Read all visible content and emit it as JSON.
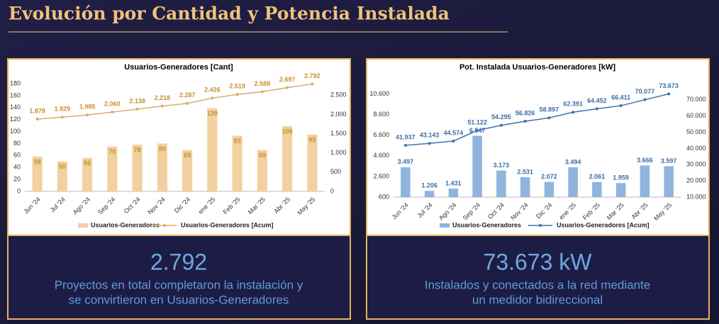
{
  "header": {
    "title": "Evolución por Cantidad y Potencia Instalada"
  },
  "cards": [
    {
      "value": "2.792",
      "lines": [
        "Proyectos en total completaron la instalación y",
        "se convirtieron en Usuarios-Generadores"
      ]
    },
    {
      "value": "73.673 kW",
      "lines": [
        "Instalados y conectados a la red mediante",
        "un medidor bidireccional"
      ]
    }
  ],
  "chart_data": [
    {
      "type": "bar",
      "title": "Usuarios-Generadores  [Cant]",
      "categories": [
        "Jun '24",
        "Jul '24",
        "Ago '24",
        "Sep '24",
        "Oct '24",
        "Nov '24",
        "Dic '24",
        "ene '25",
        "Feb '25",
        "Mar '25",
        "Abr '25",
        "May '25"
      ],
      "series": [
        {
          "name": "Usuarios-Generadores",
          "type": "bar",
          "color": "#f2d09f",
          "label_color": "#c8902e",
          "values": [
            58,
            50,
            56,
            75,
            78,
            80,
            69,
            139,
            93,
            69,
            109,
            95
          ]
        },
        {
          "name": "Usuarios-Generadores [Acum]",
          "type": "line",
          "axis": "y2",
          "color": "#d6ad68",
          "label_color": "#c8902e",
          "values": [
            1879,
            1929,
            1985,
            2060,
            2138,
            2218,
            2287,
            2426,
            2519,
            2588,
            2697,
            2792
          ],
          "value_labels": [
            "1.879",
            "1.929",
            "1.985",
            "2.060",
            "2.138",
            "2.218",
            "2.287",
            "2.426",
            "2.519",
            "2.588",
            "2.697",
            "2.792"
          ]
        }
      ],
      "ylim": [
        0,
        180
      ],
      "yticks": [
        0,
        20,
        40,
        60,
        80,
        100,
        120,
        140,
        160,
        180
      ],
      "y2lim": [
        0,
        2800
      ],
      "y2ticks": [
        0,
        500,
        {
          "value": 1000,
          "label": "1.000"
        },
        {
          "value": 1500,
          "label": "1.500"
        },
        {
          "value": 2000,
          "label": "2.000"
        },
        {
          "value": 2500,
          "label": "2.500"
        }
      ],
      "bar_label_position": "inside",
      "grid": false
    },
    {
      "type": "bar",
      "title": "Pot. Instalada Usuarios-Generadores  [kW]",
      "categories": [
        "Jun '24",
        "Jul '24",
        "Ago '24",
        "Sep '24",
        "Oct '24",
        "Nov '24",
        "Dic '24",
        "ene '25",
        "Feb '25",
        "Mar '25",
        "Abr '25",
        "May '25"
      ],
      "series": [
        {
          "name": "Usuarios-Generadores",
          "type": "bar",
          "color": "#8fb4de",
          "label_color": "#3b6ea5",
          "values": [
            3497,
            1206,
            1431,
            6547,
            3173,
            2531,
            2072,
            3494,
            2061,
            1959,
            3666,
            3597
          ],
          "value_labels": [
            "3.497",
            "1.206",
            "1.431",
            "6.547",
            "3.173",
            "2.531",
            "2.072",
            "3.494",
            "2.061",
            "1.959",
            "3.666",
            "3.597"
          ]
        },
        {
          "name": "Usuarios-Generadores [Acum]",
          "type": "line",
          "axis": "y2",
          "color": "#3f73ab",
          "label_color": "#3b6ea5",
          "values": [
            41937,
            43143,
            44574,
            51122,
            54295,
            56826,
            58897,
            62391,
            64452,
            66411,
            70077,
            73673
          ],
          "value_labels": [
            "41.937",
            "43.143",
            "44.574",
            "51.122",
            "54.295",
            "56.826",
            "58.897",
            "62.391",
            "64.452",
            "66.411",
            "70.077",
            "73.673"
          ]
        }
      ],
      "ylim": [
        600,
        11600
      ],
      "yticks": [
        600,
        {
          "value": 2600,
          "label": "2.600"
        },
        {
          "value": 4600,
          "label": "4.600"
        },
        {
          "value": 6600,
          "label": "6.600"
        },
        {
          "value": 8600,
          "label": "8.600"
        },
        {
          "value": 10600,
          "label": "10.600"
        }
      ],
      "y2lim": [
        10000,
        80000
      ],
      "y2ticks": [
        {
          "value": 10000,
          "label": "10.000"
        },
        {
          "value": 20000,
          "label": "20.000"
        },
        {
          "value": 30000,
          "label": "30.000"
        },
        {
          "value": 40000,
          "label": "40.000"
        },
        {
          "value": 50000,
          "label": "50.000"
        },
        {
          "value": 60000,
          "label": "60.000"
        },
        {
          "value": 70000,
          "label": "70.000"
        }
      ],
      "bar_label_position": "above",
      "grid": false
    }
  ]
}
